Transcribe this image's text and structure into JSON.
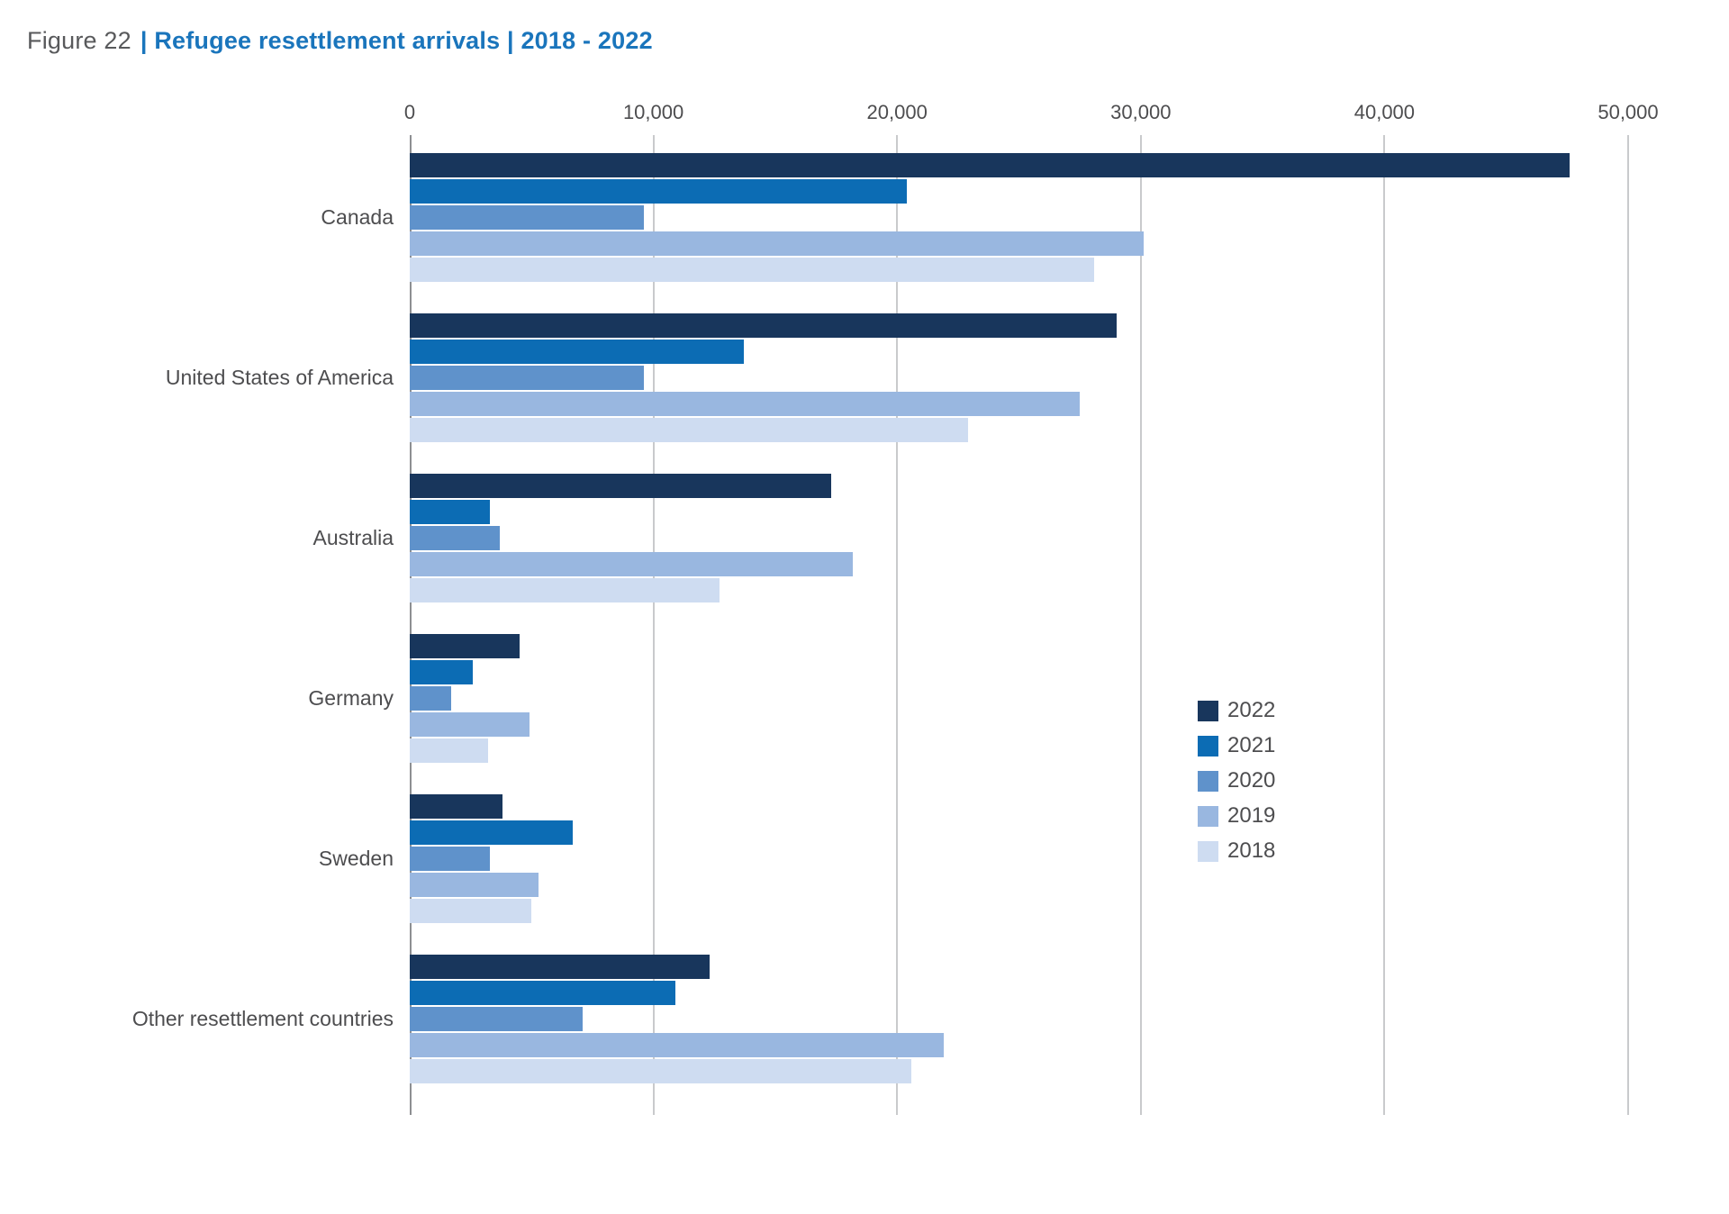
{
  "header": {
    "figure_label": "Figure 22",
    "title_main": "| Refugee resettlement arrivals | 2018 - 2022"
  },
  "chart_data": {
    "type": "bar",
    "orientation": "horizontal",
    "title": "Figure 22 | Refugee resettlement arrivals | 2018 - 2022",
    "xlabel": "",
    "ylabel": "",
    "grid": "vertical",
    "categories": [
      "Canada",
      "United States of America",
      "Australia",
      "Germany",
      "Sweden",
      "Other resettlement countries"
    ],
    "series": [
      {
        "name": "2022",
        "color": "#18365c",
        "values": [
          47600,
          29000,
          17300,
          4500,
          3800,
          12300
        ]
      },
      {
        "name": "2021",
        "color": "#0c6cb4",
        "values": [
          20400,
          13700,
          3300,
          2600,
          6700,
          10900
        ]
      },
      {
        "name": "2020",
        "color": "#5f92cb",
        "values": [
          9600,
          9600,
          3700,
          1700,
          3300,
          7100
        ]
      },
      {
        "name": "2019",
        "color": "#99b7e0",
        "values": [
          30100,
          27500,
          18200,
          4900,
          5300,
          21900
        ]
      },
      {
        "name": "2018",
        "color": "#cedcf1",
        "values": [
          28100,
          22900,
          12700,
          3200,
          5000,
          20600
        ]
      }
    ],
    "x_axis": {
      "min": 0,
      "max": 50000,
      "ticks": [
        "0",
        "10,000",
        "20,000",
        "30,000",
        "40,000",
        "50,000"
      ],
      "tick_values": [
        0,
        10000,
        20000,
        30000,
        40000,
        50000
      ]
    },
    "legend": {
      "position": "bottom-right",
      "entries": [
        "2022",
        "2021",
        "2020",
        "2019",
        "2018"
      ]
    }
  }
}
